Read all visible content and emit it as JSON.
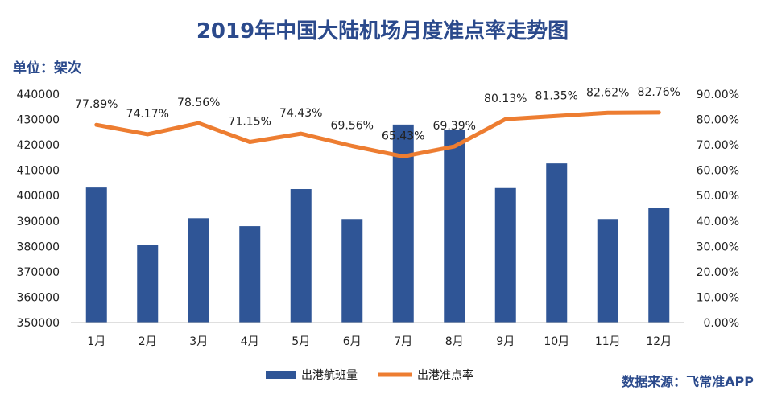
{
  "title": "2019年中国大陆机场月度准点率走势图",
  "unit": "单位：架次",
  "source": "数据来源：飞常准APP",
  "colors": {
    "bar": "#2f5596",
    "line": "#ed7d31",
    "title": "#2b4a8c",
    "axis": "#bfbfbf"
  },
  "chart_data": {
    "type": "bar",
    "categories": [
      "1月",
      "2月",
      "3月",
      "4月",
      "5月",
      "6月",
      "7月",
      "8月",
      "9月",
      "10月",
      "11月",
      "12月"
    ],
    "series": [
      {
        "name": "出港航班量",
        "type": "bar",
        "axis": "left",
        "values": [
          403200,
          380600,
          391100,
          388000,
          402600,
          390800,
          428000,
          426000,
          403000,
          412700,
          390800,
          395000
        ]
      },
      {
        "name": "出港准点率",
        "type": "line",
        "axis": "right",
        "values": [
          77.89,
          74.17,
          78.56,
          71.15,
          74.43,
          69.56,
          65.43,
          69.39,
          80.13,
          81.35,
          82.62,
          82.76
        ],
        "labels": [
          "77.89%",
          "74.17%",
          "78.56%",
          "71.15%",
          "74.43%",
          "69.56%",
          "65.43%",
          "69.39%",
          "80.13%",
          "81.35%",
          "82.62%",
          "82.76%"
        ]
      }
    ],
    "y_left": {
      "min": 350000,
      "max": 440000,
      "ticks": [
        "350000",
        "360000",
        "370000",
        "380000",
        "390000",
        "400000",
        "410000",
        "420000",
        "430000",
        "440000"
      ]
    },
    "y_right": {
      "min": 0,
      "max": 90,
      "ticks": [
        "0.00%",
        "10.00%",
        "20.00%",
        "30.00%",
        "40.00%",
        "50.00%",
        "60.00%",
        "70.00%",
        "80.00%",
        "90.00%"
      ]
    },
    "legend_position": "bottom",
    "grid": false
  }
}
